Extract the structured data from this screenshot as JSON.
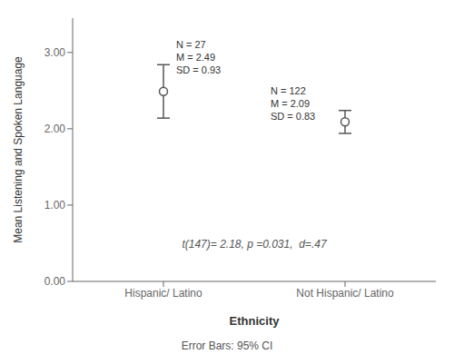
{
  "chart_data": {
    "type": "error_bar",
    "xlabel": "Ethnicity",
    "ylabel": "Mean Listening and Spoken Language",
    "categories": [
      "Hispanic/ Latino",
      "Not Hispanic/ Latino"
    ],
    "values": [
      2.49,
      2.09
    ],
    "ci_lower": [
      2.14,
      1.94
    ],
    "ci_upper": [
      2.84,
      2.24
    ],
    "annotations": [
      "N = 27\nM = 2.49\nSD = 0.93",
      "N = 122\nM = 2.09\nSD = 0.83"
    ],
    "stat_text": "t(147)= 2.18, p =0.031,  d=.47",
    "footer": "Error Bars: 95% CI",
    "ylim": [
      0.0,
      3.45
    ],
    "yticks": [
      {
        "value": 0.0,
        "label": "0.00"
      },
      {
        "value": 1.0,
        "label": "1.00"
      },
      {
        "value": 2.0,
        "label": "2.00"
      },
      {
        "value": 3.0,
        "label": "3.00"
      }
    ],
    "color": "#555555",
    "grid": false
  }
}
